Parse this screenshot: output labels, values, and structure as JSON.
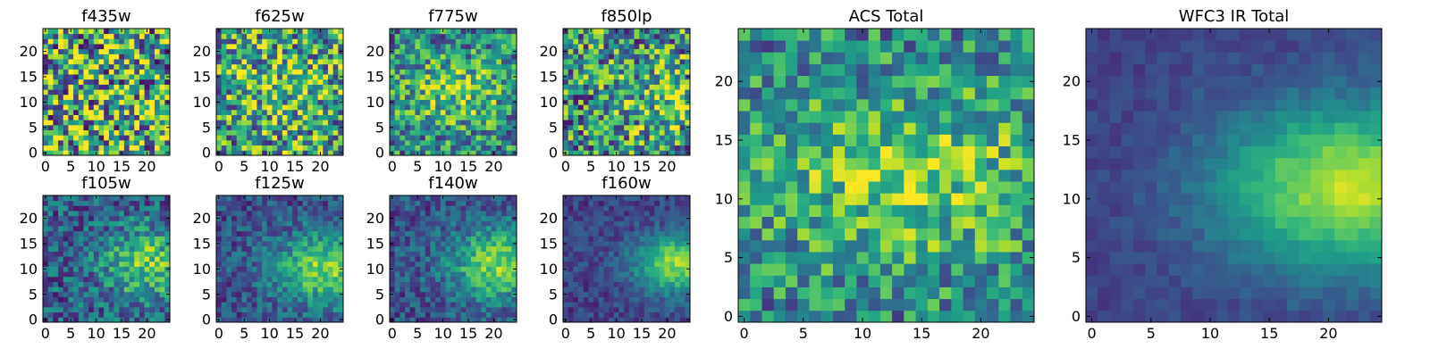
{
  "figure": {
    "colormap": [
      "#440154",
      "#482878",
      "#3e4989",
      "#31688e",
      "#26828e",
      "#1f9e89",
      "#35b779",
      "#6ece58",
      "#b5de2b",
      "#fde725"
    ],
    "axis_color": "#000000"
  },
  "chart_data": [
    {
      "type": "heatmap",
      "title": "f435w",
      "xticks": [
        "0",
        "5",
        "10",
        "15",
        "20"
      ],
      "yticks": [
        "0",
        "5",
        "10",
        "15",
        "20"
      ],
      "xlim": [
        -0.5,
        24.5
      ],
      "ylim": [
        -0.5,
        24.5
      ],
      "grid_size": 25,
      "seed": 11,
      "signal": {
        "center": [
          12,
          12
        ],
        "spread": [
          20,
          20
        ],
        "strength": 0.05
      },
      "noise": 0.6,
      "base": 0.6
    },
    {
      "type": "heatmap",
      "title": "f625w",
      "xticks": [
        "0",
        "5",
        "10",
        "15",
        "20"
      ],
      "yticks": [
        "0",
        "5",
        "10",
        "15",
        "20"
      ],
      "xlim": [
        -0.5,
        24.5
      ],
      "ylim": [
        -0.5,
        24.5
      ],
      "grid_size": 25,
      "seed": 23,
      "signal": {
        "center": [
          13,
          13
        ],
        "spread": [
          7,
          6
        ],
        "strength": 0.15
      },
      "noise": 0.45,
      "base": 0.55
    },
    {
      "type": "heatmap",
      "title": "f775w",
      "xticks": [
        "0",
        "5",
        "10",
        "15",
        "20"
      ],
      "yticks": [
        "0",
        "5",
        "10",
        "15",
        "20"
      ],
      "xlim": [
        -0.5,
        24.5
      ],
      "ylim": [
        -0.5,
        24.5
      ],
      "grid_size": 25,
      "seed": 37,
      "signal": {
        "center": [
          12,
          12
        ],
        "spread": [
          8,
          5
        ],
        "strength": 0.3
      },
      "noise": 0.35,
      "base": 0.45
    },
    {
      "type": "heatmap",
      "title": "f850lp",
      "xticks": [
        "0",
        "5",
        "10",
        "15",
        "20"
      ],
      "yticks": [
        "0",
        "5",
        "10",
        "15",
        "20"
      ],
      "xlim": [
        -0.5,
        24.5
      ],
      "ylim": [
        -0.5,
        24.5
      ],
      "grid_size": 25,
      "seed": 41,
      "signal": {
        "center": [
          20,
          11
        ],
        "spread": [
          6,
          5
        ],
        "strength": 0.25
      },
      "noise": 0.45,
      "base": 0.5
    },
    {
      "type": "heatmap",
      "title": "f105w",
      "xticks": [
        "0",
        "5",
        "10",
        "15",
        "20"
      ],
      "yticks": [
        "0",
        "5",
        "10",
        "15",
        "20"
      ],
      "xlim": [
        -0.5,
        24.5
      ],
      "ylim": [
        -0.5,
        24.5
      ],
      "grid_size": 25,
      "seed": 53,
      "signal": {
        "center": [
          20,
          11
        ],
        "spread": [
          6,
          5
        ],
        "strength": 0.45
      },
      "noise": 0.25,
      "base": 0.3
    },
    {
      "type": "heatmap",
      "title": "f125w",
      "xticks": [
        "0",
        "5",
        "10",
        "15",
        "20"
      ],
      "yticks": [
        "0",
        "5",
        "10",
        "15",
        "20"
      ],
      "xlim": [
        -0.5,
        24.5
      ],
      "ylim": [
        -0.5,
        24.5
      ],
      "grid_size": 25,
      "seed": 67,
      "signal": {
        "center": [
          21,
          10
        ],
        "spread": [
          7,
          5
        ],
        "strength": 0.55
      },
      "noise": 0.18,
      "base": 0.25
    },
    {
      "type": "heatmap",
      "title": "f140w",
      "xticks": [
        "0",
        "5",
        "10",
        "15",
        "20"
      ],
      "yticks": [
        "0",
        "5",
        "10",
        "15",
        "20"
      ],
      "xlim": [
        -0.5,
        24.5
      ],
      "ylim": [
        -0.5,
        24.5
      ],
      "grid_size": 25,
      "seed": 79,
      "signal": {
        "center": [
          21,
          11
        ],
        "spread": [
          7,
          5
        ],
        "strength": 0.55
      },
      "noise": 0.18,
      "base": 0.25
    },
    {
      "type": "heatmap",
      "title": "f160w",
      "xticks": [
        "0",
        "5",
        "10",
        "15",
        "20"
      ],
      "yticks": [
        "0",
        "5",
        "10",
        "15",
        "20"
      ],
      "xlim": [
        -0.5,
        24.5
      ],
      "ylim": [
        -0.5,
        24.5
      ],
      "grid_size": 25,
      "seed": 83,
      "signal": {
        "center": [
          22,
          11
        ],
        "spread": [
          6,
          4
        ],
        "strength": 0.65
      },
      "noise": 0.12,
      "base": 0.2
    },
    {
      "type": "heatmap",
      "title": "ACS Total",
      "xticks": [
        "0",
        "5",
        "10",
        "15",
        "20"
      ],
      "yticks": [
        "0",
        "5",
        "10",
        "15",
        "20"
      ],
      "xlim": [
        -0.5,
        24.5
      ],
      "ylim": [
        -0.5,
        24.5
      ],
      "grid_size": 25,
      "seed": 97,
      "signal": {
        "center": [
          14,
          12
        ],
        "spread": [
          9,
          5
        ],
        "strength": 0.35
      },
      "noise": 0.3,
      "base": 0.45
    },
    {
      "type": "heatmap",
      "title": "WFC3 IR Total",
      "xticks": [
        "0",
        "5",
        "10",
        "15",
        "20"
      ],
      "yticks": [
        "0",
        "5",
        "10",
        "15",
        "20"
      ],
      "xlim": [
        -0.5,
        24.5
      ],
      "ylim": [
        -0.5,
        24.5
      ],
      "grid_size": 25,
      "seed": 101,
      "signal": {
        "center": [
          22,
          11
        ],
        "spread": [
          8,
          5
        ],
        "strength": 0.7
      },
      "noise": 0.06,
      "base": 0.2
    }
  ]
}
